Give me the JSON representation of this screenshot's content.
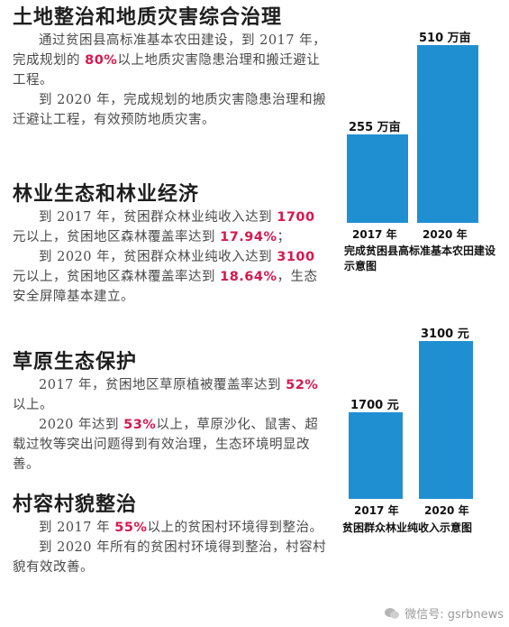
{
  "sections": [
    {
      "title": "土地整治和地质灾害综合治理",
      "paragraphs": [
        [
          {
            "t": "通过贫困县高标准基本农田建设，到 2017 年，完成规划的 "
          },
          {
            "t": "80%",
            "hl": true
          },
          {
            "t": "以上地质灾害隐患治理和搬迁避让工程。"
          }
        ],
        [
          {
            "t": "到 2020 年，完成规划的地质灾害隐患治理和搬迁避让工程，有效预防地质灾害。"
          }
        ]
      ]
    },
    {
      "title": "林业生态和林业经济",
      "paragraphs": [
        [
          {
            "t": "到 2017 年，贫困群众林业纯收入达到 "
          },
          {
            "t": "1700",
            "hl": true
          },
          {
            "t": " 元以上，贫困地区森林覆盖率达到 "
          },
          {
            "t": "17.94%",
            "hl": true
          },
          {
            "t": "；"
          }
        ],
        [
          {
            "t": "到 2020 年，贫困群众林业纯收入达到 "
          },
          {
            "t": "3100",
            "hl": true
          },
          {
            "t": " 元以上，贫困地区森林覆盖率达到 "
          },
          {
            "t": "18.64%",
            "hl": true
          },
          {
            "t": "，生态安全屏障基本建立。"
          }
        ]
      ]
    },
    {
      "title": "草原生态保护",
      "paragraphs": [
        [
          {
            "t": "2017 年，贫困地区草原植被覆盖率达到 "
          },
          {
            "t": "52%",
            "hl": true
          },
          {
            "t": "以上。"
          }
        ],
        [
          {
            "t": "2020 年达到 "
          },
          {
            "t": "53%",
            "hl": true
          },
          {
            "t": "以上，草原沙化、鼠害、超载过牧等突出问题得到有效治理，生态环境明显改善。"
          }
        ]
      ]
    },
    {
      "title": "村容村貌整治",
      "paragraphs": [
        [
          {
            "t": "到 2017 年 "
          },
          {
            "t": "55%",
            "hl": true
          },
          {
            "t": "以上的贫困村环境得到整治。"
          }
        ],
        [
          {
            "t": "到 2020 年所有的贫困村环境得到整治，村容村貌有效改善。"
          }
        ]
      ]
    }
  ],
  "chart_data": [
    {
      "type": "bar",
      "categories": [
        "2017 年",
        "2020 年"
      ],
      "values": [
        255,
        510
      ],
      "value_labels": [
        "255 万亩",
        "510 万亩"
      ],
      "caption": "完成贫困县高标准基本农田建设示意图",
      "ylim": [
        0,
        510
      ],
      "grid": false,
      "color": "#1f8fd1"
    },
    {
      "type": "bar",
      "categories": [
        "2017 年",
        "2020 年"
      ],
      "values": [
        1700,
        3100
      ],
      "value_labels": [
        "1700 元",
        "3100 元"
      ],
      "caption": "贫困群众林业纯收入示意图",
      "ylim": [
        0,
        3100
      ],
      "grid": false,
      "color": "#1f8fd1"
    }
  ],
  "watermark": {
    "text": "微信号: gsrbnews",
    "icon": "wechat-icon"
  },
  "colors": {
    "highlight": "#d5194f",
    "bar": "#1f8fd1"
  }
}
